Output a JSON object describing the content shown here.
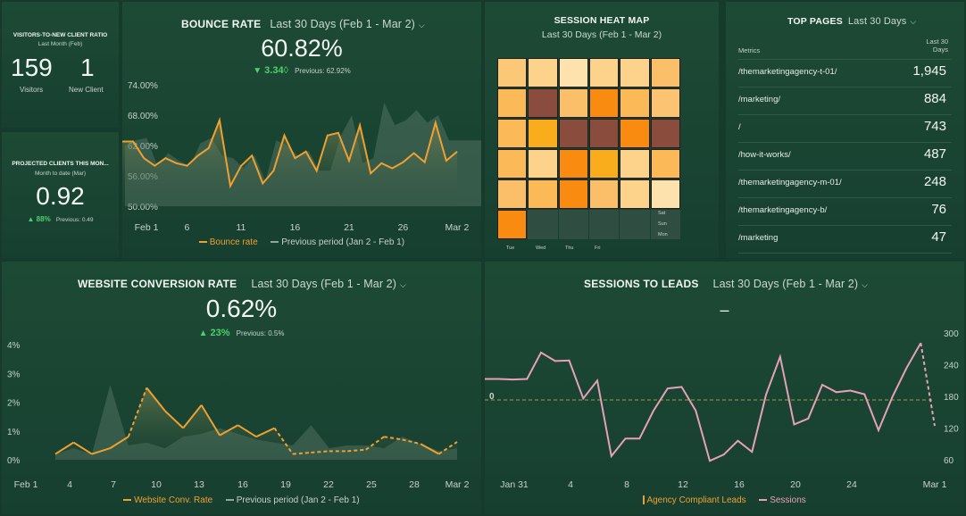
{
  "colors": {
    "bg": "#163a2c",
    "card": "#1d4a35",
    "accent_orange": "#f0a030",
    "prev_gray": "#6f8d7e",
    "pink": "#e6a0b8",
    "green": "#4ed16d"
  },
  "ratio": {
    "title": "VISITORS-TO-NEW CLIENT RATIO",
    "subtitle": "Last Month (Feb)",
    "visitors_value": "159",
    "visitors_label": "Visitors",
    "clients_value": "1",
    "clients_label": "New Client"
  },
  "projected": {
    "title": "PROJECTED CLIENTS THIS MON...",
    "subtitle": "Month to date (Mar)",
    "value": "0.92",
    "change": "88%",
    "change_icon": "triangle-up-icon",
    "previous": "Previous: 0.49"
  },
  "bounce": {
    "title": "BOUNCE RATE",
    "period": "Last 30 Days (Feb 1 - Mar 2)",
    "value": "60.82%",
    "change": "3.34",
    "change_suffix": "◊",
    "change_icon": "triangle-down-icon",
    "previous": "Previous: 62.92%",
    "legend_current": "Bounce rate",
    "legend_previous": "Previous period (Jan 2 - Feb 1)"
  },
  "heatmap": {
    "title": "SESSION HEAT MAP",
    "period": "Last 30 Days (Feb 1 - Mar 2)",
    "day_labels_bottom": [
      "Tue",
      "Wed",
      "Thu",
      "Fri"
    ],
    "day_labels_right": [
      "Sat",
      "Sun",
      "Mon"
    ],
    "rows": [
      [
        "#fbc878",
        "#fdd28a",
        "#fee2ad",
        "#fdd28a",
        "#fdd28a",
        "#fbbf6a"
      ],
      [
        "#fbb957",
        "#8a4c3c",
        "#fbbf6a",
        "#f98c10",
        "#fbb957",
        "#fcc472"
      ],
      [
        "#fbb957",
        "#f9ac1c",
        "#8a4c3c",
        "#8a4c3c",
        "#f98c10",
        "#8a4c3c"
      ],
      [
        "#fbb957",
        "#fdd28a",
        "#f98c10",
        "#f9ac1c",
        "#fdd28a",
        "#fbb957"
      ],
      [
        "#fbbf6a",
        "#fbb957",
        "#f98c10",
        "#fbbf6a",
        "#fdd28a",
        "#fee2ad"
      ],
      [
        "#f98c10",
        "",
        "",
        "",
        "",
        ""
      ]
    ]
  },
  "top_pages": {
    "title": "TOP PAGES",
    "period": "Last 30 Days",
    "col_metrics": "Metrics",
    "col_value": "Last 30 Days",
    "rows": [
      {
        "page": "/themarketingagency-t-01/",
        "value": "1,945"
      },
      {
        "page": "/marketing/",
        "value": "884"
      },
      {
        "page": "/",
        "value": "743"
      },
      {
        "page": "/how-it-works/",
        "value": "487"
      },
      {
        "page": "/themarketingagency-m-01/",
        "value": "248"
      },
      {
        "page": "/themarketingagency-b/",
        "value": "76"
      },
      {
        "page": "/marketing",
        "value": "47"
      }
    ]
  },
  "conversion": {
    "title": "WEBSITE CONVERSION RATE",
    "period": "Last 30 Days (Feb 1 - Mar 2)",
    "value": "0.62%",
    "change": "23%",
    "change_icon": "triangle-up-icon",
    "previous": "Previous: 0.5%",
    "legend_current": "Website Conv. Rate",
    "legend_previous": "Previous period (Jan 2 - Feb 1)"
  },
  "leads": {
    "title": "SESSIONS TO LEADS",
    "period": "Last 30 Days (Feb 1 - Mar 2)",
    "value": "–",
    "legend_leads": "Agency Compliant Leads",
    "legend_sessions": "Sessions"
  },
  "chart_data": [
    {
      "type": "line",
      "title": "BOUNCE RATE",
      "x_ticks": [
        "Feb 1",
        "6",
        "11",
        "16",
        "21",
        "26",
        "Mar 2"
      ],
      "y_ticks": [
        "74.00%",
        "68.00%",
        "62.00%",
        "56.00%",
        "50.00%"
      ],
      "ylim": [
        50,
        76
      ],
      "series": [
        {
          "name": "Bounce rate",
          "values": [
            62.8,
            62.8,
            59.5,
            58,
            59.5,
            58.5,
            58,
            60,
            61.5,
            67,
            54,
            58,
            60,
            54.5,
            57,
            64,
            59.5,
            60.8,
            57,
            64,
            64.5,
            59,
            66,
            56.5,
            58.5,
            57.5,
            58.7,
            60.5,
            58.7,
            66.5,
            59,
            60.8
          ]
        },
        {
          "name": "Previous period (Jan 2 - Feb 1)",
          "values": [
            62,
            63,
            63.5,
            58,
            60.5,
            59,
            58,
            62.5,
            63.5,
            60,
            59.5,
            57.5,
            60,
            55,
            63,
            62,
            60,
            61,
            57,
            57,
            64,
            68,
            58.5,
            59.5,
            70.5,
            66,
            67,
            69,
            66.5,
            68,
            63,
            63
          ]
        }
      ]
    },
    {
      "type": "line",
      "title": "WEBSITE CONVERSION RATE",
      "x_ticks": [
        "Feb 1",
        "4",
        "7",
        "10",
        "13",
        "16",
        "19",
        "22",
        "25",
        "28",
        "Mar 2"
      ],
      "y_ticks": [
        "4%",
        "3%",
        "2%",
        "1%",
        "0%"
      ],
      "ylim": [
        0,
        4
      ],
      "series": [
        {
          "name": "Website Conv. Rate",
          "values": [
            0.2,
            0.6,
            0.2,
            0.4,
            0.8,
            2.5,
            1.7,
            1.1,
            1.9,
            0.85,
            1.2,
            0.8,
            1.1,
            0.2,
            0.25,
            0.3,
            0.3,
            0.35,
            0.8,
            0.7,
            0.55,
            0.2,
            0.62
          ]
        },
        {
          "name": "Previous period (Jan 2 - Feb 1)",
          "values": [
            0.2,
            0.4,
            0.2,
            2.6,
            0.5,
            0.6,
            0.4,
            0.8,
            0.9,
            1.1,
            0.9,
            0.7,
            0.6,
            0.5,
            1.2,
            0.4,
            0.5,
            0.5,
            0.4,
            0.8,
            0.55,
            0.3,
            0.4
          ]
        }
      ]
    },
    {
      "type": "line",
      "title": "SESSIONS TO LEADS",
      "x_ticks": [
        "Jan 31",
        "4",
        "8",
        "12",
        "16",
        "20",
        "24",
        "Mar 1"
      ],
      "y_ticks_right": [
        "300",
        "240",
        "180",
        "120",
        "60"
      ],
      "y_ticks_left": [
        "0"
      ],
      "ylim": [
        60,
        300
      ],
      "series": [
        {
          "name": "Sessions",
          "values": [
            213,
            213,
            212,
            213,
            263,
            247,
            248,
            176,
            210,
            67,
            100,
            100,
            153,
            195,
            198,
            153,
            58,
            70,
            96,
            75,
            183,
            255,
            127,
            138,
            202,
            188,
            191,
            184,
            116,
            180,
            234,
            281,
            124
          ]
        },
        {
          "name": "Agency Compliant Leads",
          "values": [
            0
          ]
        }
      ]
    }
  ]
}
